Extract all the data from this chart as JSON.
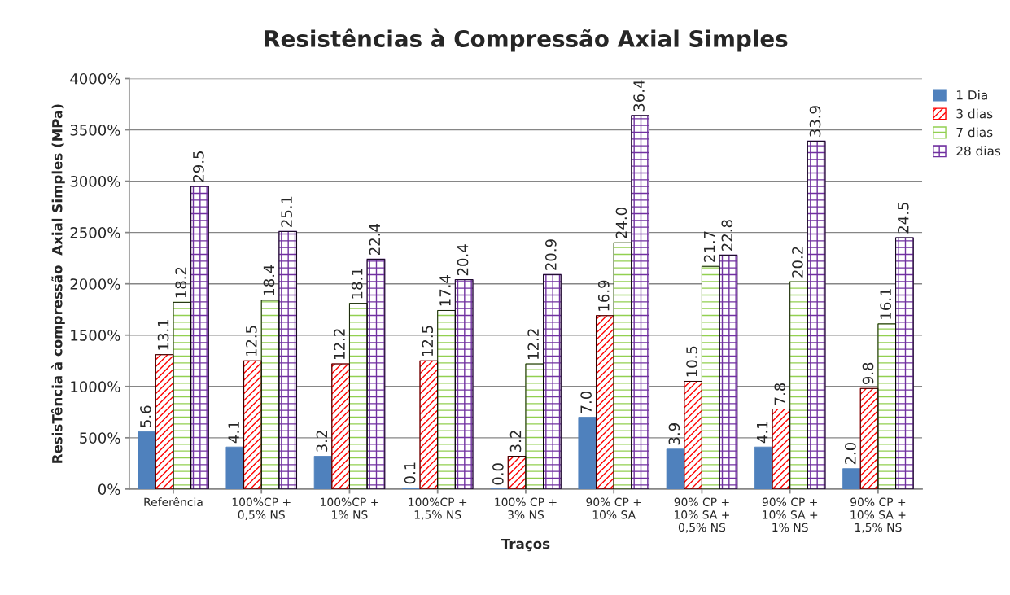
{
  "chart_data": {
    "type": "bar",
    "title": "Resistências à Compressão Axial Simples",
    "xlabel": "Traços",
    "ylabel": "ResisTência à compressão  Axial Simples (MPa)",
    "categories": [
      "Referência",
      "100%CP +\n0,5% NS",
      "100%CP +\n1% NS",
      "100%CP +\n1,5% NS",
      "100% CP +\n3% NS",
      "90% CP +\n10% SA",
      "90% CP +\n10% SA +\n0,5% NS",
      "90% CP +\n10% SA +\n1% NS",
      "90% CP +\n10% SA +\n1,5% NS"
    ],
    "series": [
      {
        "name": "1 Dia",
        "color": "#4f81bd",
        "values": [
          5.6,
          4.1,
          3.2,
          0.1,
          0.0,
          7.0,
          3.9,
          4.1,
          2.0
        ],
        "value_labels": [
          "5.6",
          "4.1",
          "3.2",
          "0.1",
          "0.0",
          "7.0",
          "3.9",
          "4.1",
          "2.0"
        ]
      },
      {
        "name": "3 dias",
        "color": "#ff0000",
        "values": [
          13.1,
          12.5,
          12.2,
          12.5,
          3.2,
          16.9,
          10.5,
          7.8,
          9.8
        ],
        "value_labels": [
          "13.1",
          "12.5",
          "12.2",
          "12.5",
          "3.2",
          "16.9",
          "10.5",
          "7.8",
          "9.8"
        ]
      },
      {
        "name": "7 dias",
        "color": "#92d050",
        "values": [
          18.2,
          18.4,
          18.1,
          17.4,
          12.2,
          24.0,
          21.7,
          20.2,
          16.1
        ],
        "value_labels": [
          "18.2",
          "18.4",
          "18.1",
          "17.4",
          "12.2",
          "24.0",
          "21.7",
          "20.2",
          "16.1"
        ]
      },
      {
        "name": "28 dias",
        "color": "#7030a0",
        "values": [
          29.5,
          25.1,
          22.4,
          20.4,
          20.9,
          36.4,
          22.8,
          33.9,
          24.5
        ],
        "value_labels": [
          "29.5",
          "25.1",
          "22.4",
          "20.4",
          "20.9",
          "36.4",
          "22.8",
          "33.9",
          "24.5"
        ]
      }
    ],
    "ylim": [
      0,
      40
    ],
    "yticks": [
      {
        "value": 0,
        "label": "0%"
      },
      {
        "value": 5,
        "label": "500%"
      },
      {
        "value": 10,
        "label": "1000%"
      },
      {
        "value": 15,
        "label": "1500%"
      },
      {
        "value": 20,
        "label": "2000%"
      },
      {
        "value": 25,
        "label": "2500%"
      },
      {
        "value": 30,
        "label": "3000%"
      },
      {
        "value": 35,
        "label": "3500%"
      },
      {
        "value": 40,
        "label": "4000%"
      }
    ],
    "grid": "y",
    "legend": "right"
  }
}
